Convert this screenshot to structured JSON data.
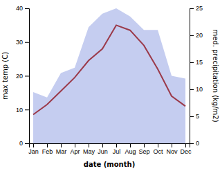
{
  "chart_data": {
    "type": "line",
    "x_label": "date (month)",
    "y_label": "max temp (C)",
    "y2_label": "med. precipitation (kg/m2)",
    "categories": [
      "Jan",
      "Feb",
      "Mar",
      "Apr",
      "May",
      "Jun",
      "Jul",
      "Aug",
      "Sep",
      "Oct",
      "Nov",
      "Dec"
    ],
    "series": [
      {
        "type": "area",
        "axis": "y2",
        "color": "#c5cdf0",
        "values": [
          9.5,
          8.5,
          13.0,
          14.0,
          21.5,
          24.0,
          25.0,
          23.5,
          21.0,
          21.0,
          12.5,
          12.0
        ]
      },
      {
        "type": "line",
        "color": "#9b3a4a",
        "values": [
          8.5,
          11.5,
          15.5,
          19.5,
          24.5,
          28.0,
          35.0,
          33.5,
          29.0,
          22.0,
          14.0,
          11.0
        ]
      }
    ],
    "ylim": [
      0,
      40
    ],
    "yticks": [
      0,
      10,
      20,
      30,
      40
    ],
    "y2lim": [
      0,
      25
    ],
    "y2ticks": [
      0,
      5,
      10,
      15,
      20,
      25
    ]
  }
}
